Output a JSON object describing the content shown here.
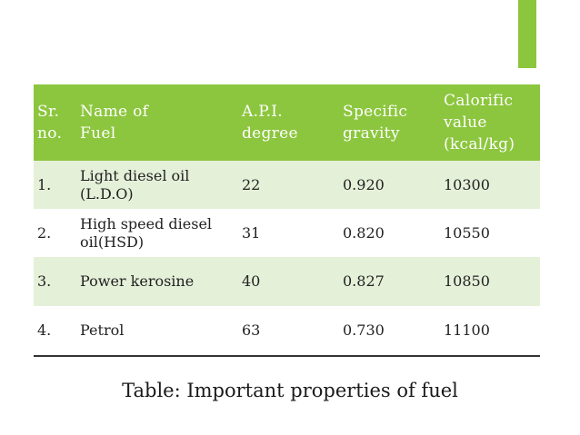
{
  "accent_color": "#8cc63e",
  "row_tint_color": "#e5f0d9",
  "table": {
    "headers": {
      "sr_line1": "Sr.",
      "sr_line2": "no.",
      "name_line1": "Name of",
      "name_line2": "Fuel",
      "api_line1": "A.P.I.",
      "api_line2": "degree",
      "sg_line1": "Specific",
      "sg_line2": "gravity",
      "cv_line1": "Calorific",
      "cv_line2": "value",
      "cv_line3": "(kcal/kg)"
    },
    "rows": [
      {
        "sr": "1.",
        "name_line1": "Light diesel oil",
        "name_line2": "(L.D.O)",
        "api": "22",
        "sg": "0.920",
        "cv": "10300"
      },
      {
        "sr": "2.",
        "name_line1": "High speed diesel",
        "name_line2": "oil(HSD)",
        "api": "31",
        "sg": "0.820",
        "cv": "10550"
      },
      {
        "sr": "3.",
        "name_line1": "Power kerosine",
        "name_line2": "",
        "api": "40",
        "sg": "0.827",
        "cv": "10850"
      },
      {
        "sr": "4.",
        "name_line1": "Petrol",
        "name_line2": "",
        "api": "63",
        "sg": "0.730",
        "cv": "11100"
      }
    ]
  },
  "caption": "Table: Important properties of fuel"
}
